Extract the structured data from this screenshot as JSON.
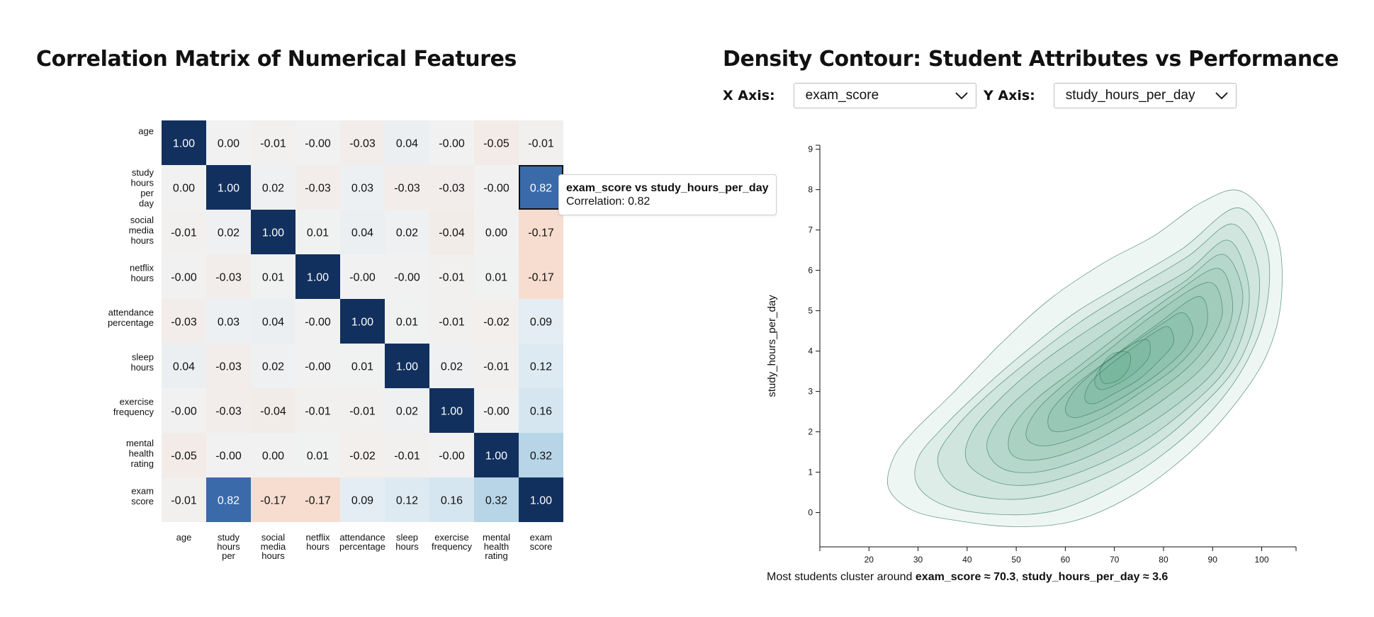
{
  "heatmap": {
    "title": "Correlation Matrix of Numerical Features",
    "tooltip": {
      "header": "exam_score vs study_hours_per_day",
      "body": "Correlation: 0.82"
    }
  },
  "contour": {
    "title": "Density Contour: Student Attributes vs Performance",
    "controls": {
      "x_label": "X Axis:",
      "x_value": "exam_score",
      "y_label": "Y Axis:",
      "y_value": "study_hours_per_day"
    },
    "summary": {
      "prefix": "Most students cluster around ",
      "x_part": "exam_score ≈ 70.3",
      "sep": ", ",
      "y_part": "study_hours_per_day ≈ 3.6"
    }
  },
  "colors": {
    "strong_positive": "#12305e",
    "positive_mid": "#3a6aaa",
    "weak_positive": "#b2d2e7",
    "weak_negative": "#f7ddcf",
    "contour_fill": "#3d9a72",
    "contour_stroke": "#3e7f63"
  },
  "chart_data": [
    {
      "type": "heatmap",
      "title": "Correlation Matrix of Numerical Features",
      "row_labels": [
        [
          "age"
        ],
        [
          "study",
          "hours",
          "per",
          "day"
        ],
        [
          "social",
          "media",
          "hours"
        ],
        [
          "netflix",
          "hours"
        ],
        [
          "attendance",
          "percentage"
        ],
        [
          "sleep",
          "hours"
        ],
        [
          "exercise",
          "frequency"
        ],
        [
          "mental",
          "health",
          "rating"
        ],
        [
          "exam",
          "score"
        ]
      ],
      "col_labels": [
        [
          "age"
        ],
        [
          "study",
          "hours",
          "per"
        ],
        [
          "social",
          "media",
          "hours"
        ],
        [
          "netflix",
          "hours"
        ],
        [
          "attendance",
          "percentage"
        ],
        [
          "sleep",
          "hours"
        ],
        [
          "exercise",
          "frequency"
        ],
        [
          "mental",
          "health",
          "rating"
        ],
        [
          "exam",
          "score"
        ]
      ],
      "values": [
        [
          1.0,
          0.0,
          -0.01,
          -0.0,
          -0.03,
          0.04,
          -0.0,
          -0.05,
          -0.01
        ],
        [
          0.0,
          1.0,
          0.02,
          -0.03,
          0.03,
          -0.03,
          -0.03,
          -0.0,
          0.82
        ],
        [
          -0.01,
          0.02,
          1.0,
          0.01,
          0.04,
          0.02,
          -0.04,
          0.0,
          -0.17
        ],
        [
          -0.0,
          -0.03,
          0.01,
          1.0,
          -0.0,
          -0.0,
          -0.01,
          0.01,
          -0.17
        ],
        [
          -0.03,
          0.03,
          0.04,
          -0.0,
          1.0,
          0.01,
          -0.01,
          -0.02,
          0.09
        ],
        [
          0.04,
          -0.03,
          0.02,
          -0.0,
          0.01,
          1.0,
          0.02,
          -0.01,
          0.12
        ],
        [
          -0.0,
          -0.03,
          -0.04,
          -0.01,
          -0.01,
          0.02,
          1.0,
          -0.0,
          0.16
        ],
        [
          -0.05,
          -0.0,
          0.0,
          0.01,
          -0.02,
          -0.01,
          -0.0,
          1.0,
          0.32
        ],
        [
          -0.01,
          0.82,
          -0.17,
          -0.17,
          0.09,
          0.12,
          0.16,
          0.32,
          1.0
        ]
      ],
      "display": [
        [
          "1.00",
          "0.00",
          "-0.01",
          "-0.00",
          "-0.03",
          "0.04",
          "-0.00",
          "-0.05",
          "-0.01"
        ],
        [
          "0.00",
          "1.00",
          "0.02",
          "-0.03",
          "0.03",
          "-0.03",
          "-0.03",
          "-0.00",
          "0.82"
        ],
        [
          "-0.01",
          "0.02",
          "1.00",
          "0.01",
          "0.04",
          "0.02",
          "-0.04",
          "0.00",
          "-0.17"
        ],
        [
          "-0.00",
          "-0.03",
          "0.01",
          "1.00",
          "-0.00",
          "-0.00",
          "-0.01",
          "0.01",
          "-0.17"
        ],
        [
          "-0.03",
          "0.03",
          "0.04",
          "-0.00",
          "1.00",
          "0.01",
          "-0.01",
          "-0.02",
          "0.09"
        ],
        [
          "0.04",
          "-0.03",
          "0.02",
          "-0.00",
          "0.01",
          "1.00",
          "0.02",
          "-0.01",
          "0.12"
        ],
        [
          "-0.00",
          "-0.03",
          "-0.04",
          "-0.01",
          "-0.01",
          "0.02",
          "1.00",
          "-0.00",
          "0.16"
        ],
        [
          "-0.05",
          "-0.00",
          "0.00",
          "0.01",
          "-0.02",
          "-0.01",
          "-0.00",
          "1.00",
          "0.32"
        ],
        [
          "-0.01",
          "0.82",
          "-0.17",
          "-0.17",
          "0.09",
          "0.12",
          "0.16",
          "0.32",
          "1.00"
        ]
      ],
      "highlighted_cell": {
        "row": 1,
        "col": 8
      },
      "color_scale": "diverging red-blue",
      "value_range": [
        -1,
        1
      ]
    },
    {
      "type": "density_contour",
      "xlabel": "",
      "ylabel": "study_hours_per_day",
      "x_ticks": [
        20,
        30,
        40,
        50,
        60,
        70,
        80,
        90,
        100
      ],
      "y_ticks": [
        0,
        1,
        2,
        3,
        4,
        5,
        6,
        7,
        8,
        9
      ],
      "xlim": [
        10,
        107
      ],
      "ylim": [
        -0.85,
        9.1
      ],
      "peak": {
        "x": 70.3,
        "y": 3.6
      },
      "contours": [
        {
          "level": 1,
          "points": [
            [
              96,
              7.95
            ],
            [
              103,
              6.9
            ],
            [
              104,
              5.3
            ],
            [
              101,
              3.9
            ],
            [
              94,
              2.6
            ],
            [
              85,
              1.45
            ],
            [
              74,
              0.45
            ],
            [
              62,
              -0.2
            ],
            [
              50,
              -0.35
            ],
            [
              38,
              -0.2
            ],
            [
              29,
              0.05
            ],
            [
              24,
              0.6
            ],
            [
              25,
              1.35
            ],
            [
              29,
              2.0
            ],
            [
              37,
              2.95
            ],
            [
              47,
              4.2
            ],
            [
              57,
              5.3
            ],
            [
              68,
              6.2
            ],
            [
              78,
              6.85
            ],
            [
              88,
              7.7
            ]
          ]
        },
        {
          "level": 2,
          "points": [
            [
              95,
              7.55
            ],
            [
              101,
              6.55
            ],
            [
              101,
              5.1
            ],
            [
              97,
              3.75
            ],
            [
              90,
              2.55
            ],
            [
              80,
              1.45
            ],
            [
              69,
              0.6
            ],
            [
              58,
              0.05
            ],
            [
              47,
              -0.05
            ],
            [
              36,
              0.15
            ],
            [
              30,
              0.65
            ],
            [
              30,
              1.35
            ],
            [
              35,
              2.1
            ],
            [
              43,
              3.05
            ],
            [
              52,
              4.0
            ],
            [
              62,
              4.95
            ],
            [
              73,
              5.75
            ],
            [
              84,
              6.55
            ]
          ]
        },
        {
          "level": 3,
          "points": [
            [
              94,
              7.15
            ],
            [
              99,
              6.2
            ],
            [
              99,
              4.95
            ],
            [
              95,
              3.65
            ],
            [
              87,
              2.55
            ],
            [
              77,
              1.55
            ],
            [
              66,
              0.85
            ],
            [
              55,
              0.4
            ],
            [
              45,
              0.35
            ],
            [
              37,
              0.65
            ],
            [
              34,
              1.35
            ],
            [
              38,
              2.15
            ],
            [
              45,
              3.0
            ],
            [
              54,
              3.9
            ],
            [
              64,
              4.8
            ],
            [
              74,
              5.55
            ],
            [
              85,
              6.35
            ]
          ]
        },
        {
          "level": 4,
          "points": [
            [
              93,
              6.75
            ],
            [
              97,
              5.85
            ],
            [
              97,
              4.8
            ],
            [
              93,
              3.6
            ],
            [
              85,
              2.6
            ],
            [
              75,
              1.7
            ],
            [
              64,
              1.05
            ],
            [
              54,
              0.7
            ],
            [
              46,
              0.75
            ],
            [
              40,
              1.25
            ],
            [
              41,
              2.0
            ],
            [
              47,
              2.85
            ],
            [
              55,
              3.7
            ],
            [
              65,
              4.55
            ],
            [
              75,
              5.3
            ],
            [
              85,
              6.0
            ]
          ]
        },
        {
          "level": 5,
          "points": [
            [
              92,
              6.4
            ],
            [
              96,
              5.55
            ],
            [
              95,
              4.65
            ],
            [
              91,
              3.6
            ],
            [
              83,
              2.7
            ],
            [
              73,
              1.9
            ],
            [
              63,
              1.3
            ],
            [
              54,
              1.0
            ],
            [
              47,
              1.1
            ],
            [
              44,
              1.65
            ],
            [
              47,
              2.4
            ],
            [
              54,
              3.2
            ],
            [
              63,
              4.0
            ],
            [
              73,
              4.85
            ],
            [
              84,
              5.7
            ]
          ]
        },
        {
          "level": 6,
          "points": [
            [
              91,
              6.05
            ],
            [
              94,
              5.3
            ],
            [
              93,
              4.5
            ],
            [
              88,
              3.6
            ],
            [
              80,
              2.8
            ],
            [
              71,
              2.1
            ],
            [
              62,
              1.55
            ],
            [
              54,
              1.3
            ],
            [
              49,
              1.45
            ],
            [
              49,
              2.05
            ],
            [
              54,
              2.8
            ],
            [
              62,
              3.55
            ],
            [
              71,
              4.4
            ],
            [
              82,
              5.4
            ]
          ]
        },
        {
          "level": 7,
          "points": [
            [
              89,
              5.7
            ],
            [
              92,
              5.05
            ],
            [
              90,
              4.35
            ],
            [
              85,
              3.6
            ],
            [
              77,
              2.85
            ],
            [
              69,
              2.25
            ],
            [
              61,
              1.8
            ],
            [
              55,
              1.65
            ],
            [
              52,
              1.9
            ],
            [
              54,
              2.5
            ],
            [
              60,
              3.2
            ],
            [
              68,
              3.95
            ],
            [
              78,
              4.9
            ]
          ]
        },
        {
          "level": 8,
          "points": [
            [
              87,
              5.35
            ],
            [
              89,
              4.8
            ],
            [
              87,
              4.2
            ],
            [
              82,
              3.55
            ],
            [
              75,
              2.95
            ],
            [
              68,
              2.4
            ],
            [
              61,
              2.05
            ],
            [
              57,
              2.05
            ],
            [
              57,
              2.5
            ],
            [
              62,
              3.15
            ],
            [
              69,
              3.8
            ],
            [
              78,
              4.6
            ]
          ]
        },
        {
          "level": 9,
          "points": [
            [
              84,
              4.95
            ],
            [
              86,
              4.5
            ],
            [
              84,
              4.0
            ],
            [
              79,
              3.45
            ],
            [
              73,
              2.95
            ],
            [
              67,
              2.55
            ],
            [
              62,
              2.35
            ],
            [
              60,
              2.55
            ],
            [
              62,
              3.05
            ],
            [
              67,
              3.6
            ],
            [
              74,
              4.2
            ],
            [
              80,
              4.7
            ]
          ]
        },
        {
          "level": 10,
          "points": [
            [
              81,
              4.6
            ],
            [
              82,
              4.2
            ],
            [
              79,
              3.75
            ],
            [
              75,
              3.3
            ],
            [
              70,
              2.95
            ],
            [
              66,
              2.7
            ],
            [
              64,
              2.8
            ],
            [
              65,
              3.2
            ],
            [
              69,
              3.65
            ],
            [
              74,
              4.1
            ],
            [
              78,
              4.45
            ]
          ]
        },
        {
          "level": 11,
          "points": [
            [
              77,
              4.25
            ],
            [
              77,
              3.85
            ],
            [
              74,
              3.45
            ],
            [
              70,
              3.15
            ],
            [
              67,
              3.05
            ],
            [
              66,
              3.3
            ],
            [
              68,
              3.7
            ],
            [
              72,
              4.05
            ],
            [
              75,
              4.25
            ]
          ]
        },
        {
          "level": 12,
          "points": [
            [
              73,
              3.95
            ],
            [
              73,
              3.6
            ],
            [
              71,
              3.3
            ],
            [
              68,
              3.2
            ],
            [
              67,
              3.45
            ],
            [
              68,
              3.75
            ],
            [
              70,
              3.95
            ]
          ]
        }
      ]
    }
  ]
}
